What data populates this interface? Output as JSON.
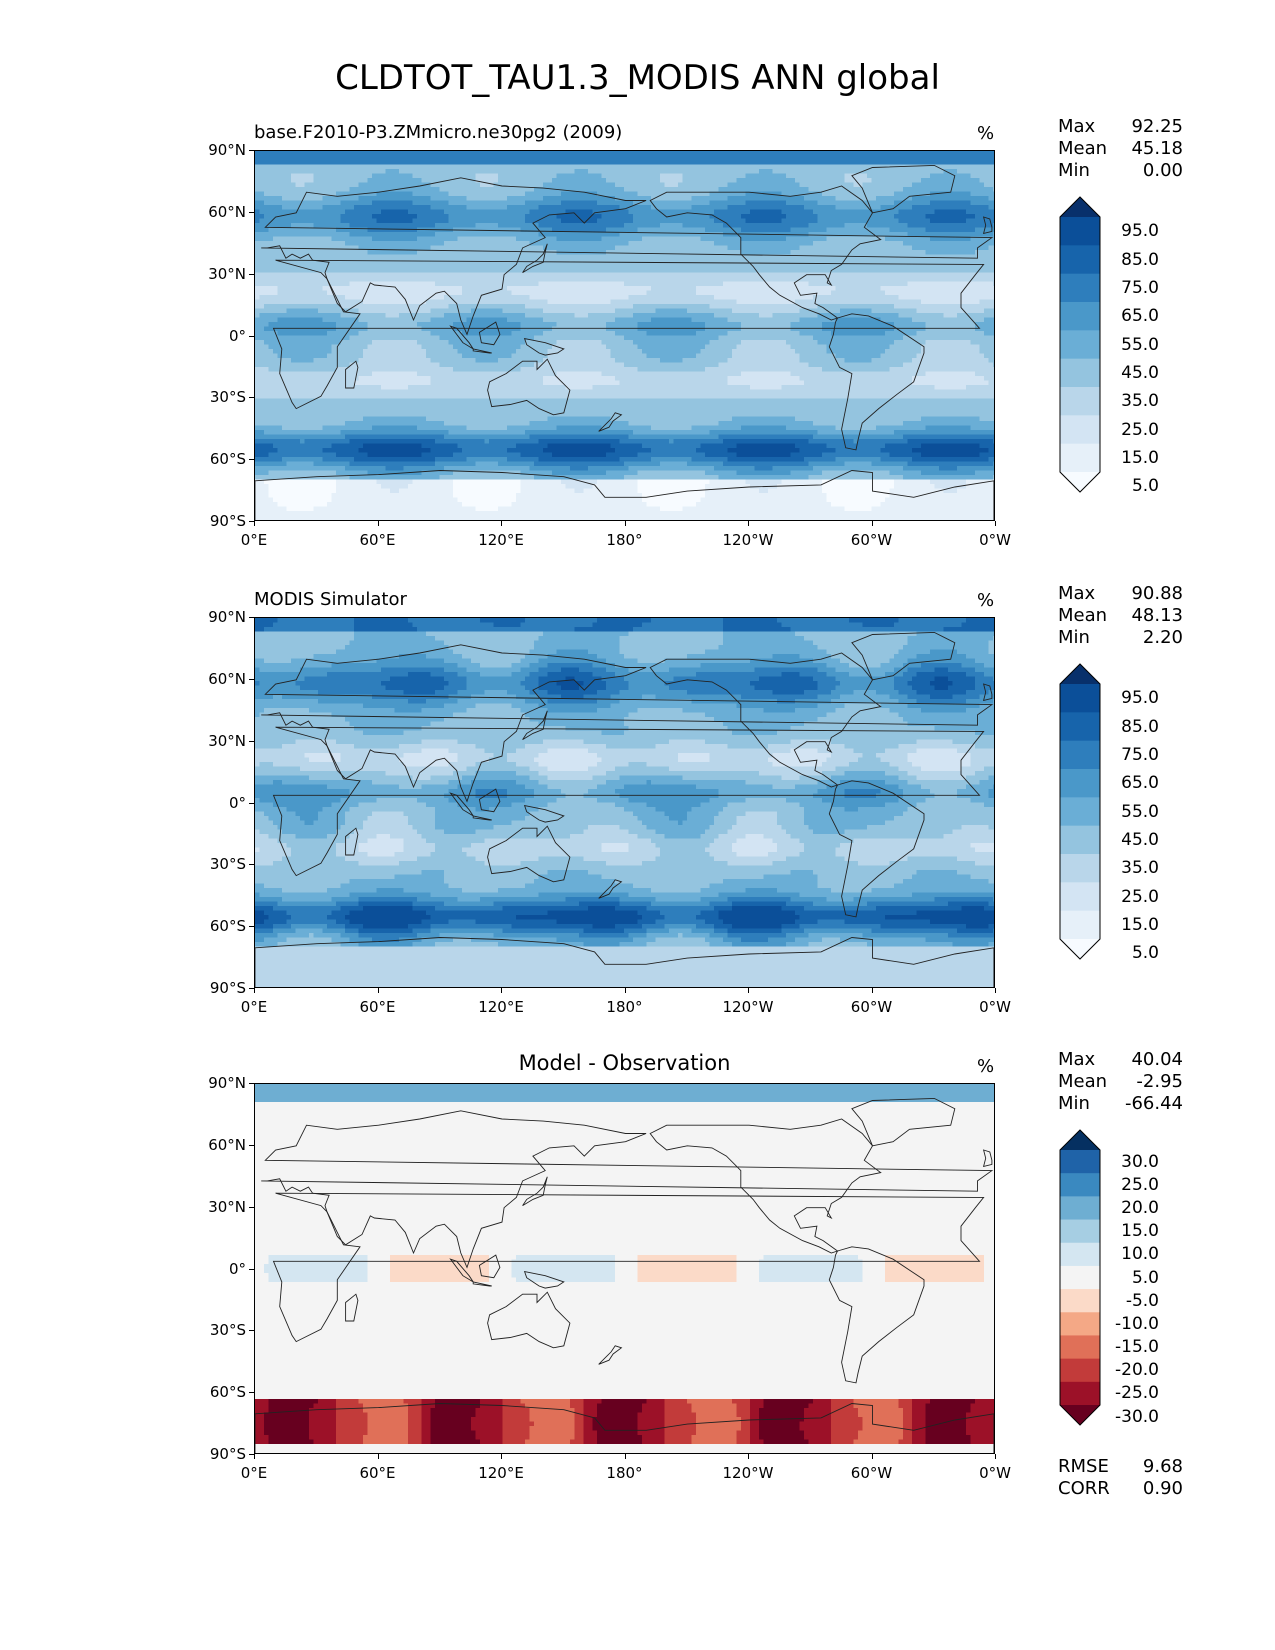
{
  "figure": {
    "title": "CLDTOT_TAU1.3_MODIS ANN global"
  },
  "axes": {
    "lat_ticks": [
      "90°N",
      "60°N",
      "30°N",
      "0°",
      "30°S",
      "60°S",
      "90°S"
    ],
    "lon_ticks": [
      "0°E",
      "60°E",
      "120°E",
      "180°",
      "120°W",
      "60°W",
      "0°W"
    ]
  },
  "panels": [
    {
      "title": "base.F2010-P3.ZMmicro.ne30pg2 (2009)",
      "title_style": "left",
      "units": "%",
      "stats": [
        {
          "label": "Max",
          "value": "92.25"
        },
        {
          "label": "Mean",
          "value": "45.18"
        },
        {
          "label": "Min",
          "value": "0.00"
        }
      ],
      "colorbar": {
        "labels": [
          "95.0",
          "85.0",
          "75.0",
          "65.0",
          "55.0",
          "45.0",
          "35.0",
          "25.0",
          "15.0",
          "5.0"
        ],
        "colors": [
          "#08306b",
          "#0b4f99",
          "#1764ab",
          "#2e7ebc",
          "#4a98c9",
          "#6aaed6",
          "#94c4df",
          "#b9d6ea",
          "#d3e4f3",
          "#e6f0f9",
          "#f7fbff"
        ]
      }
    },
    {
      "title": "MODIS Simulator",
      "title_style": "left",
      "units": "%",
      "stats": [
        {
          "label": "Max",
          "value": "90.88"
        },
        {
          "label": "Mean",
          "value": "48.13"
        },
        {
          "label": "Min",
          "value": "2.20"
        }
      ],
      "colorbar": {
        "labels": [
          "95.0",
          "85.0",
          "75.0",
          "65.0",
          "55.0",
          "45.0",
          "35.0",
          "25.0",
          "15.0",
          "5.0"
        ],
        "colors": [
          "#08306b",
          "#0b4f99",
          "#1764ab",
          "#2e7ebc",
          "#4a98c9",
          "#6aaed6",
          "#94c4df",
          "#b9d6ea",
          "#d3e4f3",
          "#e6f0f9",
          "#f7fbff"
        ]
      }
    },
    {
      "title": "Model - Observation",
      "title_style": "center",
      "units": "%",
      "stats": [
        {
          "label": "Max",
          "value": "40.04"
        },
        {
          "label": "Mean",
          "value": "-2.95"
        },
        {
          "label": "Min",
          "value": "-66.44"
        }
      ],
      "colorbar": {
        "labels": [
          "30.0",
          "25.0",
          "20.0",
          "15.0",
          "10.0",
          "5.0",
          "-5.0",
          "-10.0",
          "-15.0",
          "-20.0",
          "-25.0",
          "-30.0"
        ],
        "colors": [
          "#053061",
          "#1f63a8",
          "#3a89c0",
          "#6eaed2",
          "#a6cee3",
          "#d4e6f1",
          "#f4f4f4",
          "#fbdac8",
          "#f4a886",
          "#e07058",
          "#c23b3a",
          "#9c1128",
          "#67001f"
        ]
      },
      "footer_stats": [
        {
          "label": "RMSE",
          "value": "9.68"
        },
        {
          "label": "CORR",
          "value": "0.90"
        }
      ]
    }
  ]
}
